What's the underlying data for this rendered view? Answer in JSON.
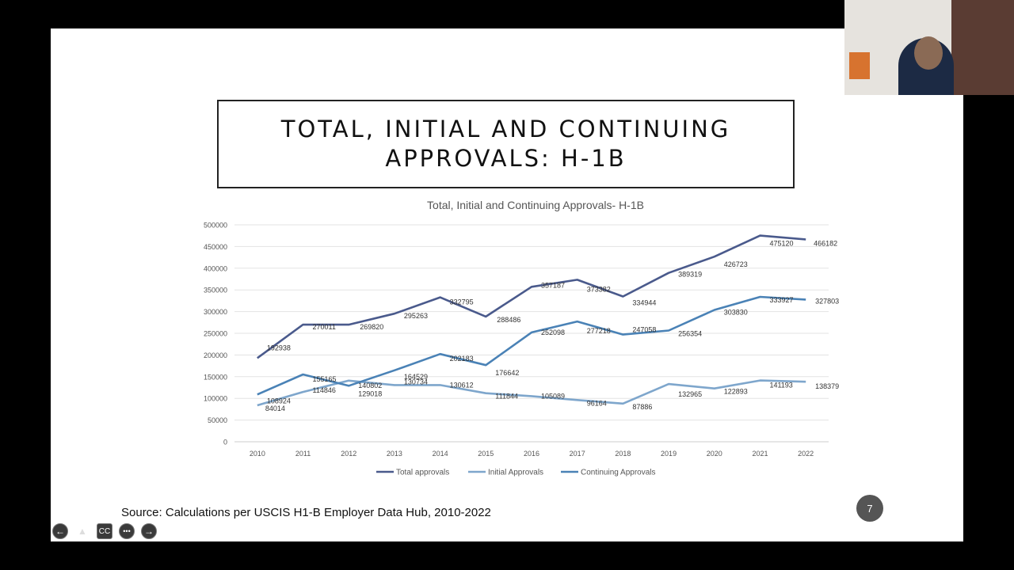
{
  "slide": {
    "title_line1": "TOTAL, INITIAL AND CONTINUING",
    "title_line2": "APPROVALS: H-1B",
    "source": "Source: Calculations per USCIS H1-B Employer Data Hub, 2010-2022",
    "slide_number": "7"
  },
  "controls": [
    {
      "name": "previous-slide-icon",
      "glyph": "←"
    },
    {
      "name": "pointer-tool-icon",
      "glyph": "▲"
    },
    {
      "name": "captions-icon",
      "glyph": "CC"
    },
    {
      "name": "more-options-icon",
      "glyph": "•••"
    },
    {
      "name": "next-slide-icon",
      "glyph": "→"
    }
  ],
  "chart_data": {
    "type": "line",
    "title": "Total, Initial and Continuing Approvals- H-1B",
    "xlabel": "",
    "ylabel": "",
    "x": [
      "2010",
      "2011",
      "2012",
      "2013",
      "2014",
      "2015",
      "2016",
      "2017",
      "2018",
      "2019",
      "2020",
      "2021",
      "2022"
    ],
    "ylim": [
      0,
      500000
    ],
    "yticks": [
      "0",
      "50000",
      "100000",
      "150000",
      "200000",
      "250000",
      "300000",
      "350000",
      "400000",
      "450000",
      "500000"
    ],
    "grid": true,
    "legend": "bottom",
    "series": [
      {
        "name": "Total approvals",
        "color": "#4a5a8c",
        "values": [
          192938,
          270011,
          269820,
          295263,
          332795,
          288486,
          357187,
          373382,
          334944,
          389319,
          426723,
          475120,
          466182
        ],
        "labels": [
          "192938",
          "270011",
          "269820",
          "295263",
          "332795",
          "288486",
          "357187",
          "373382",
          "334944",
          "389319",
          "426723",
          "475120",
          "466182"
        ]
      },
      {
        "name": "Initial Approvals",
        "color": "#7ea6cc",
        "values": [
          84014,
          114846,
          140802,
          130734,
          130612,
          111844,
          105089,
          96164,
          87886,
          132965,
          122893,
          141193,
          138379
        ],
        "labels": [
          "84014",
          "114846",
          "140802",
          "130734",
          "130612",
          "111844",
          "105089",
          "96164",
          "87886",
          "132965",
          "122893",
          "141193",
          "138379"
        ]
      },
      {
        "name": "Continuing Approvals",
        "color": "#4a82b6",
        "values": [
          108924,
          155165,
          129018,
          164529,
          202183,
          176642,
          252098,
          277218,
          247058,
          256354,
          303830,
          333927,
          327803
        ],
        "labels": [
          "108924",
          "155165",
          "129018",
          "164529",
          "202183",
          "176642",
          "252098",
          "277218",
          "247058",
          "256354",
          "303830",
          "333927",
          "327803"
        ]
      }
    ]
  }
}
